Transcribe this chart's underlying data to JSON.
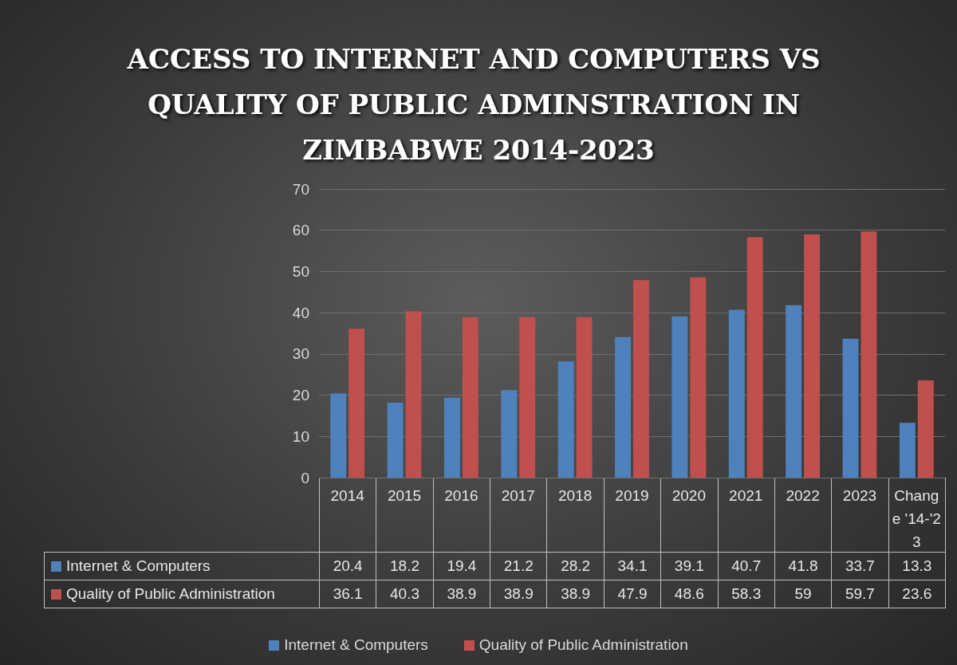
{
  "chart_data": {
    "type": "bar",
    "title": "ACCESS TO INTERNET AND COMPUTERS VS QUALITY OF PUBLIC ADMINSTRATION IN ZIMBABWE 2014-2023",
    "categories": [
      "2014",
      "2015",
      "2016",
      "2017",
      "2018",
      "2019",
      "2020",
      "2021",
      "2022",
      "2023",
      "Change '14-'23"
    ],
    "series": [
      {
        "name": "Internet & Computers",
        "color": "#4f81bd",
        "values": [
          20.4,
          18.2,
          19.4,
          21.2,
          28.2,
          34.1,
          39.1,
          40.7,
          41.8,
          33.7,
          13.3
        ]
      },
      {
        "name": "Quality of Public Administration",
        "color": "#c0504d",
        "values": [
          36.1,
          40.3,
          38.9,
          38.9,
          38.9,
          47.9,
          48.6,
          58.3,
          59,
          59.7,
          23.6
        ]
      }
    ],
    "ylim": [
      0,
      70
    ],
    "yticks": [
      0,
      10,
      20,
      30,
      40,
      50,
      60,
      70
    ],
    "grid": "y",
    "legend": "bottom",
    "data_labels": true
  }
}
